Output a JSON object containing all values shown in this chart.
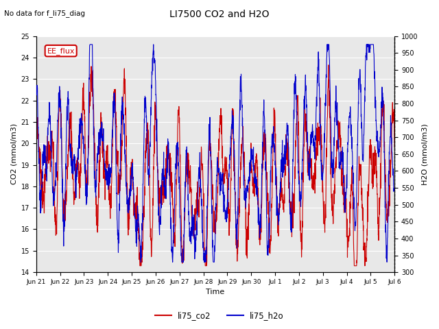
{
  "title": "LI7500 CO2 and H2O",
  "subtitle": "No data for f_li75_diag",
  "xlabel": "Time",
  "ylabel_left": "CO2 (mmol/m3)",
  "ylabel_right": "H2O (mmol/m3)",
  "ylim_left": [
    14.0,
    25.0
  ],
  "ylim_right": [
    300,
    1000
  ],
  "legend_labels": [
    "li75_co2",
    "li75_h2o"
  ],
  "legend_colors": [
    "#cc0000",
    "#0000cc"
  ],
  "annotation_text": "EE_flux",
  "annotation_color": "#cc0000",
  "background_color": "#ffffff",
  "plot_bg_color": "#e8e8e8",
  "grid_color": "#ffffff",
  "tick_labels": [
    "Jun 21",
    "Jun 22",
    "Jun 23",
    "Jun 24",
    "Jun 25",
    "Jun 26",
    "Jun 27",
    "Jun 28",
    "Jun 29",
    "Jun 30",
    "Jul 1",
    "Jul 2",
    "Jul 3",
    "Jul 4",
    "Jul 5",
    "Jul 6"
  ],
  "n_points": 2000,
  "co2_color": "#cc0000",
  "h2o_color": "#0000cc",
  "line_width": 0.8
}
